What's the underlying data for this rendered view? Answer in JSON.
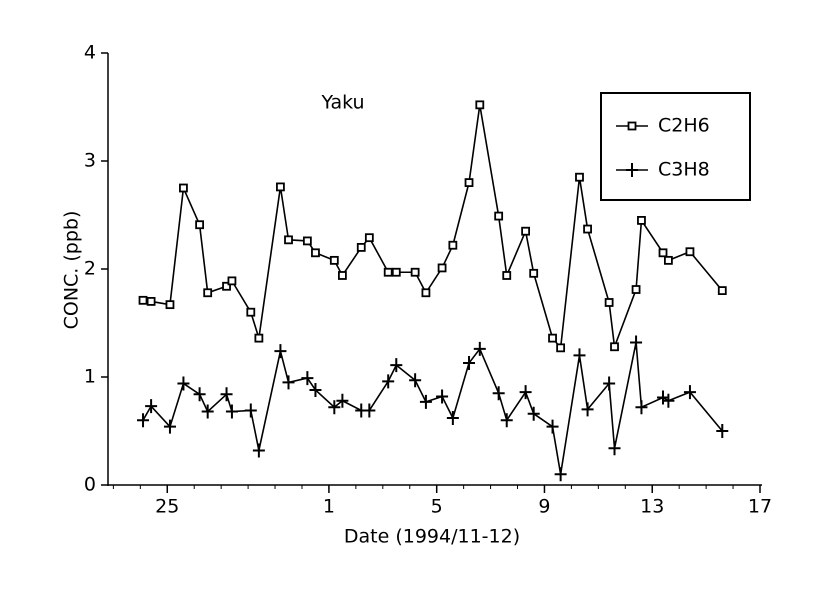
{
  "chart_data": {
    "type": "line",
    "title": "Yaku",
    "xlabel": "Date (1994/11-12)",
    "ylabel": "CONC. (ppb)",
    "x": [
      24.1,
      24.4,
      25.1,
      25.6,
      26.2,
      26.5,
      27.2,
      27.4,
      28.1,
      28.4,
      29.2,
      29.5,
      30.2,
      30.5,
      31.2,
      31.5,
      32.2,
      32.5,
      33.2,
      33.5,
      34.2,
      34.6,
      35.2,
      35.6,
      36.2,
      36.6,
      37.3,
      37.6,
      38.3,
      38.6,
      39.3,
      39.6,
      40.3,
      40.6,
      41.4,
      41.6,
      42.4,
      42.6,
      43.4,
      43.6,
      44.4,
      45.6
    ],
    "series": [
      {
        "name": "C2H6",
        "color": "#000000",
        "marker": "square",
        "values": [
          1.71,
          1.7,
          1.67,
          2.75,
          2.41,
          1.78,
          1.84,
          1.89,
          1.6,
          1.36,
          2.76,
          2.27,
          2.26,
          2.15,
          2.08,
          1.94,
          2.2,
          2.29,
          1.97,
          1.97,
          1.97,
          1.78,
          2.01,
          2.22,
          2.8,
          3.52,
          2.49,
          1.94,
          2.35,
          1.96,
          1.36,
          1.27,
          2.85,
          2.37,
          1.69,
          1.28,
          1.81,
          2.45,
          2.15,
          2.08,
          2.16,
          1.8
        ]
      },
      {
        "name": "C3H8",
        "color": "#000000",
        "marker": "plus",
        "values": [
          0.6,
          0.73,
          0.54,
          0.94,
          0.84,
          0.68,
          0.84,
          0.68,
          0.69,
          0.32,
          1.24,
          0.95,
          0.99,
          0.88,
          0.72,
          0.78,
          0.69,
          0.69,
          0.96,
          1.11,
          0.97,
          0.77,
          0.82,
          0.62,
          1.13,
          1.26,
          0.85,
          0.6,
          0.86,
          0.66,
          0.54,
          0.1,
          1.2,
          0.7,
          0.94,
          0.34,
          1.32,
          0.72,
          0.81,
          0.78,
          0.86,
          0.5
        ]
      }
    ],
    "xlim": [
      22.8,
      47
    ],
    "xticks": [
      {
        "value": 25,
        "label": "25"
      },
      {
        "value": 31,
        "label": "1"
      },
      {
        "value": 35,
        "label": "5"
      },
      {
        "value": 39,
        "label": "9"
      },
      {
        "value": 43,
        "label": "13"
      },
      {
        "value": 47,
        "label": "17"
      }
    ],
    "ylim": [
      0,
      4
    ],
    "yticks": [
      0,
      1,
      2,
      3,
      4
    ],
    "legend": "upper right"
  }
}
